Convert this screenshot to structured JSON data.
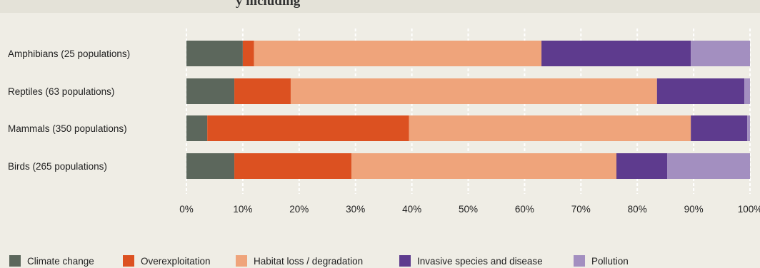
{
  "header": {
    "title": "y including"
  },
  "chart_data": {
    "type": "bar",
    "orientation": "horizontal",
    "stacked": true,
    "categories": [
      "Amphibians (25 populations)",
      "Reptiles (63 populations)",
      "Mammals (350 populations)",
      "Birds (265 populations)"
    ],
    "series": [
      {
        "name": "Climate change",
        "color": "#5c675c",
        "values": [
          10,
          8.5,
          3.7,
          8.5
        ]
      },
      {
        "name": "Overexploitation",
        "color": "#dc5121",
        "values": [
          2,
          10,
          35.8,
          20.8
        ]
      },
      {
        "name": "Habitat loss / degradation",
        "color": "#efa47b",
        "values": [
          51,
          65,
          50,
          47
        ]
      },
      {
        "name": "Invasive species and disease",
        "color": "#5e3b8e",
        "values": [
          26.5,
          15.5,
          10,
          9
        ]
      },
      {
        "name": "Pollution",
        "color": "#a38fc0",
        "values": [
          10.5,
          1,
          0.5,
          14.7
        ]
      }
    ],
    "xlim": [
      0,
      100
    ],
    "x_ticks": [
      "0%",
      "10%",
      "20%",
      "30%",
      "40%",
      "50%",
      "60%",
      "70%",
      "80%",
      "90%",
      "100%"
    ],
    "grid": "vertical dashed",
    "legend": "bottom"
  }
}
